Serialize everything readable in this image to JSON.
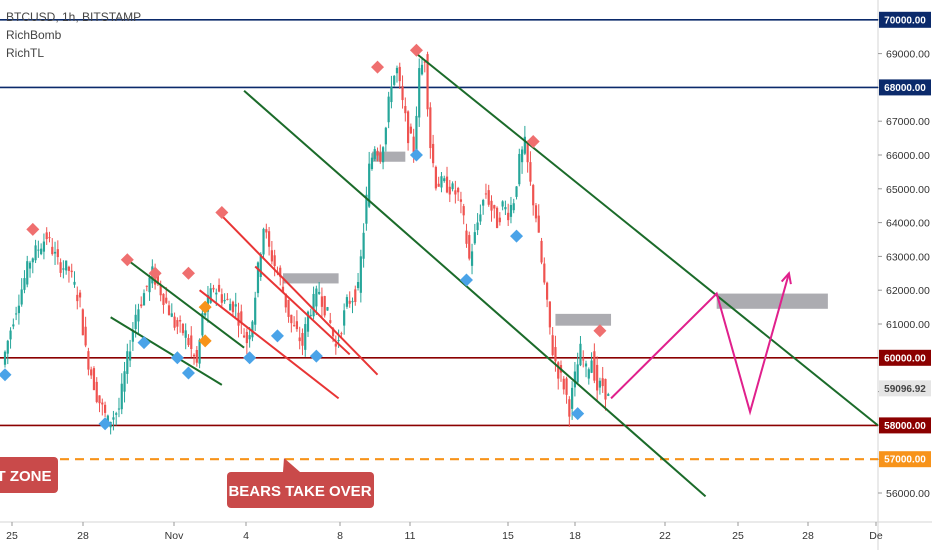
{
  "chart_data": {
    "type": "candlestick",
    "title": "BTCUSD, 1h, BITSTAMP",
    "indicators": [
      "RichBomb",
      "RichTL"
    ],
    "price_axis": {
      "ticks": [
        "56000.00",
        "57000.00",
        "58000.00",
        "59000.00",
        "60000.00",
        "61000.00",
        "62000.00",
        "63000.00",
        "64000.00",
        "65000.00",
        "66000.00",
        "67000.00",
        "68000.00",
        "69000.00",
        "70000.00"
      ],
      "current_price": "59096.92",
      "ylim": [
        55300,
        70300
      ]
    },
    "time_axis": {
      "ticks": [
        "25",
        "28",
        "Nov",
        "4",
        "8",
        "11",
        "15",
        "18",
        "22",
        "25",
        "28",
        "De"
      ]
    },
    "horizontal_levels": [
      {
        "price": 70000,
        "label": "70000.00",
        "color": "#0b2a6b",
        "style": "solid"
      },
      {
        "price": 68000,
        "label": "68000.00",
        "color": "#0b2a6b",
        "style": "solid"
      },
      {
        "price": 60000,
        "label": "60000.00",
        "color": "#8b0000",
        "style": "solid"
      },
      {
        "price": 58000,
        "label": "58000.00",
        "color": "#8b0000",
        "style": "solid"
      },
      {
        "price": 57000,
        "label": "57000.00",
        "color": "#f7931a",
        "style": "dashed"
      }
    ],
    "price_path": [
      [
        0,
        59800
      ],
      [
        2,
        61200
      ],
      [
        5,
        62900
      ],
      [
        8,
        63600
      ],
      [
        10,
        62800
      ],
      [
        12,
        62600
      ],
      [
        14,
        61600
      ],
      [
        15,
        60200
      ],
      [
        17,
        58900
      ],
      [
        19,
        58100
      ],
      [
        21,
        58500
      ],
      [
        22,
        59500
      ],
      [
        24,
        61300
      ],
      [
        27,
        62500
      ],
      [
        29,
        61800
      ],
      [
        31,
        61000
      ],
      [
        33,
        60700
      ],
      [
        34,
        60200
      ],
      [
        35,
        59800
      ],
      [
        36,
        61200
      ],
      [
        38,
        62100
      ],
      [
        40,
        61700
      ],
      [
        42,
        61500
      ],
      [
        43,
        60900
      ],
      [
        44,
        60500
      ],
      [
        45,
        61200
      ],
      [
        46,
        62600
      ],
      [
        47,
        63900
      ],
      [
        48,
        63200
      ],
      [
        50,
        62300
      ],
      [
        51,
        61600
      ],
      [
        52,
        61000
      ],
      [
        54,
        60400
      ],
      [
        55,
        61300
      ],
      [
        57,
        62000
      ],
      [
        59,
        61000
      ],
      [
        60,
        60300
      ],
      [
        62,
        61600
      ],
      [
        64,
        62000
      ],
      [
        65,
        63800
      ],
      [
        66,
        65600
      ],
      [
        67,
        66300
      ],
      [
        68,
        66000
      ],
      [
        69,
        66800
      ],
      [
        70,
        68200
      ],
      [
        71,
        68500
      ],
      [
        72,
        67500
      ],
      [
        73,
        66600
      ],
      [
        74,
        66200
      ],
      [
        75,
        68400
      ],
      [
        76,
        68900
      ],
      [
        77,
        66300
      ],
      [
        78,
        65200
      ],
      [
        80,
        65100
      ],
      [
        82,
        64800
      ],
      [
        83,
        64000
      ],
      [
        84,
        62900
      ],
      [
        85,
        63600
      ],
      [
        86,
        64400
      ],
      [
        87,
        64900
      ],
      [
        88,
        64400
      ],
      [
        89,
        64000
      ],
      [
        90,
        64500
      ],
      [
        91,
        64300
      ],
      [
        92,
        64700
      ],
      [
        93,
        65800
      ],
      [
        94,
        66300
      ],
      [
        95,
        65100
      ],
      [
        96,
        64200
      ],
      [
        97,
        62800
      ],
      [
        98,
        61500
      ],
      [
        99,
        60200
      ],
      [
        100,
        59600
      ],
      [
        101,
        59200
      ],
      [
        102,
        58500
      ],
      [
        103,
        59400
      ],
      [
        104,
        60200
      ],
      [
        105,
        59600
      ],
      [
        106,
        60000
      ],
      [
        107,
        59100
      ],
      [
        108,
        59200
      ],
      [
        109,
        58800
      ]
    ],
    "buy_markers": [
      [
        0,
        59500
      ],
      [
        18,
        58050
      ],
      [
        25,
        60450
      ],
      [
        31,
        60000
      ],
      [
        33,
        59550
      ],
      [
        44,
        60000
      ],
      [
        49,
        60650
      ],
      [
        56,
        60050
      ],
      [
        74,
        66000
      ],
      [
        83,
        62300
      ],
      [
        92,
        63600
      ],
      [
        103,
        58350
      ]
    ],
    "sell_markers": [
      [
        5,
        63800
      ],
      [
        22,
        62900
      ],
      [
        27,
        62500
      ],
      [
        33,
        62500
      ],
      [
        39,
        64300
      ],
      [
        67,
        68600
      ],
      [
        74,
        69100
      ],
      [
        95,
        66400
      ],
      [
        107,
        60800
      ]
    ],
    "orange_markers": [
      [
        36,
        61500
      ],
      [
        36,
        60500
      ]
    ],
    "supply_zones": [
      [
        66,
        72,
        66100,
        65800
      ],
      [
        50,
        60,
        62500,
        62200
      ],
      [
        99,
        109,
        61300,
        60950
      ],
      [
        128,
        148,
        61900,
        61450
      ]
    ],
    "trendlines": [
      {
        "color": "#1b6b2a",
        "points": [
          [
            43,
            67900
          ],
          [
            126,
            55900
          ]
        ]
      },
      {
        "color": "#1b6b2a",
        "points": [
          [
            74,
            69000
          ],
          [
            157,
            58000
          ]
        ]
      },
      {
        "color": "#1b6b2a",
        "points": [
          [
            22,
            62900
          ],
          [
            43,
            60300
          ]
        ]
      },
      {
        "color": "#1b6b2a",
        "points": [
          [
            19,
            61200
          ],
          [
            39,
            59200
          ]
        ]
      },
      {
        "color": "#e83535",
        "points": [
          [
            39,
            64200
          ],
          [
            67,
            59500
          ]
        ]
      },
      {
        "color": "#e83535",
        "points": [
          [
            35,
            62000
          ],
          [
            60,
            58800
          ]
        ]
      },
      {
        "color": "#e83535",
        "points": [
          [
            45,
            62700
          ],
          [
            62,
            60100
          ]
        ]
      }
    ],
    "projection": [
      [
        109,
        58800
      ],
      [
        128,
        61900
      ],
      [
        134,
        58400
      ],
      [
        141,
        62500
      ]
    ],
    "annotations": [
      "BEARS TAKE OVER",
      "T ZONE"
    ]
  }
}
